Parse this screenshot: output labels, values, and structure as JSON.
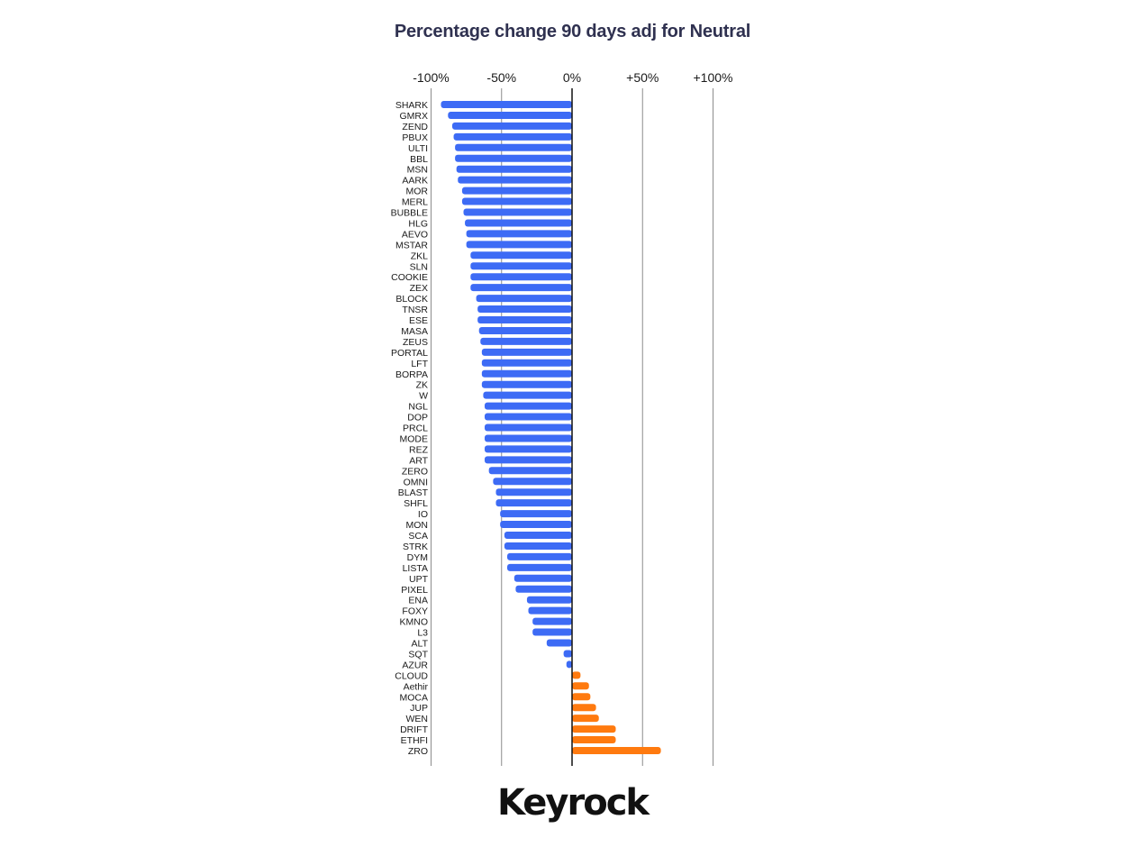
{
  "chart_data": {
    "type": "bar",
    "orientation": "horizontal",
    "title": "Percentage change 90 days adj for Neutral",
    "xlabel": "",
    "ylabel": "",
    "xlim": [
      -100,
      100
    ],
    "ticks": [
      "-100%",
      "-50%",
      "0%",
      "+50%",
      "+100%"
    ],
    "tick_values": [
      -100,
      -50,
      0,
      50,
      100
    ],
    "grid": true,
    "colors": {
      "negative": "#3d6bf5",
      "positive": "#ff7a0f",
      "gridline": "#8c8c8c",
      "zero_line": "#111111"
    },
    "categories": [
      "SHARK",
      "GMRX",
      "ZEND",
      "PBUX",
      "ULTI",
      "BBL",
      "MSN",
      "AARK",
      "MOR",
      "MERL",
      "BUBBLE",
      "HLG",
      "AEVO",
      "MSTAR",
      "ZKL",
      "SLN",
      "COOKIE",
      "ZEX",
      "BLOCK",
      "TNSR",
      "ESE",
      "MASA",
      "ZEUS",
      "PORTAL",
      "LFT",
      "BORPA",
      "ZK",
      "W",
      "NGL",
      "DOP",
      "PRCL",
      "MODE",
      "REZ",
      "ART",
      "ZERO",
      "OMNI",
      "BLAST",
      "SHFL",
      "IO",
      "MON",
      "SCA",
      "STRK",
      "DYM",
      "LISTA",
      "UPT",
      "PIXEL",
      "ENA",
      "FOXY",
      "KMNO",
      "L3",
      "ALT",
      "SQT",
      "AZUR",
      "CLOUD",
      "Aethir",
      "MOCA",
      "JUP",
      "WEN",
      "DRIFT",
      "ETHFI",
      "ZRO"
    ],
    "values": [
      -93,
      -88,
      -85,
      -84,
      -83,
      -83,
      -82,
      -81,
      -78,
      -78,
      -77,
      -76,
      -75,
      -75,
      -72,
      -72,
      -72,
      -72,
      -68,
      -67,
      -67,
      -66,
      -65,
      -64,
      -64,
      -64,
      -64,
      -63,
      -62,
      -62,
      -62,
      -62,
      -62,
      -62,
      -59,
      -56,
      -54,
      -54,
      -51,
      -51,
      -48,
      -48,
      -46,
      -46,
      -41,
      -40,
      -32,
      -31,
      -28,
      -28,
      -18,
      -6,
      -4,
      6,
      12,
      13,
      17,
      19,
      31,
      31,
      63
    ]
  },
  "brand": {
    "logo_text": "Keyrock"
  }
}
